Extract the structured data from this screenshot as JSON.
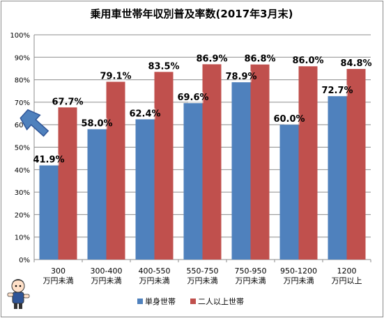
{
  "chart_data": {
    "type": "bar",
    "title": "乗用車世帯年収別普及率数(2017年3月末)",
    "categories": [
      [
        "300",
        "万円未満"
      ],
      [
        "300-400",
        "万円未満"
      ],
      [
        "400-550",
        "万円未満"
      ],
      [
        "550-750",
        "万円未満"
      ],
      [
        "750-950",
        "万円未満"
      ],
      [
        "950-1200",
        "万円未満"
      ],
      [
        "1200",
        "万円以上"
      ]
    ],
    "series": [
      {
        "name": "単身世帯",
        "color": "#4f81bd",
        "values": [
          41.9,
          58.0,
          62.4,
          69.6,
          78.9,
          60.0,
          72.7
        ]
      },
      {
        "name": "二人以上世帯",
        "color": "#c0504d",
        "values": [
          67.7,
          79.1,
          83.5,
          86.9,
          86.8,
          86.0,
          84.8
        ]
      }
    ],
    "ylim": [
      0,
      100
    ],
    "yticks": [
      "0%",
      "10%",
      "20%",
      "30%",
      "40%",
      "50%",
      "60%",
      "70%",
      "80%",
      "90%",
      "100%"
    ],
    "grid": true,
    "legend_position": "bottom",
    "highlight_arrow_color": "#4f81bd",
    "mascot_icon": "mascot-character-icon"
  }
}
